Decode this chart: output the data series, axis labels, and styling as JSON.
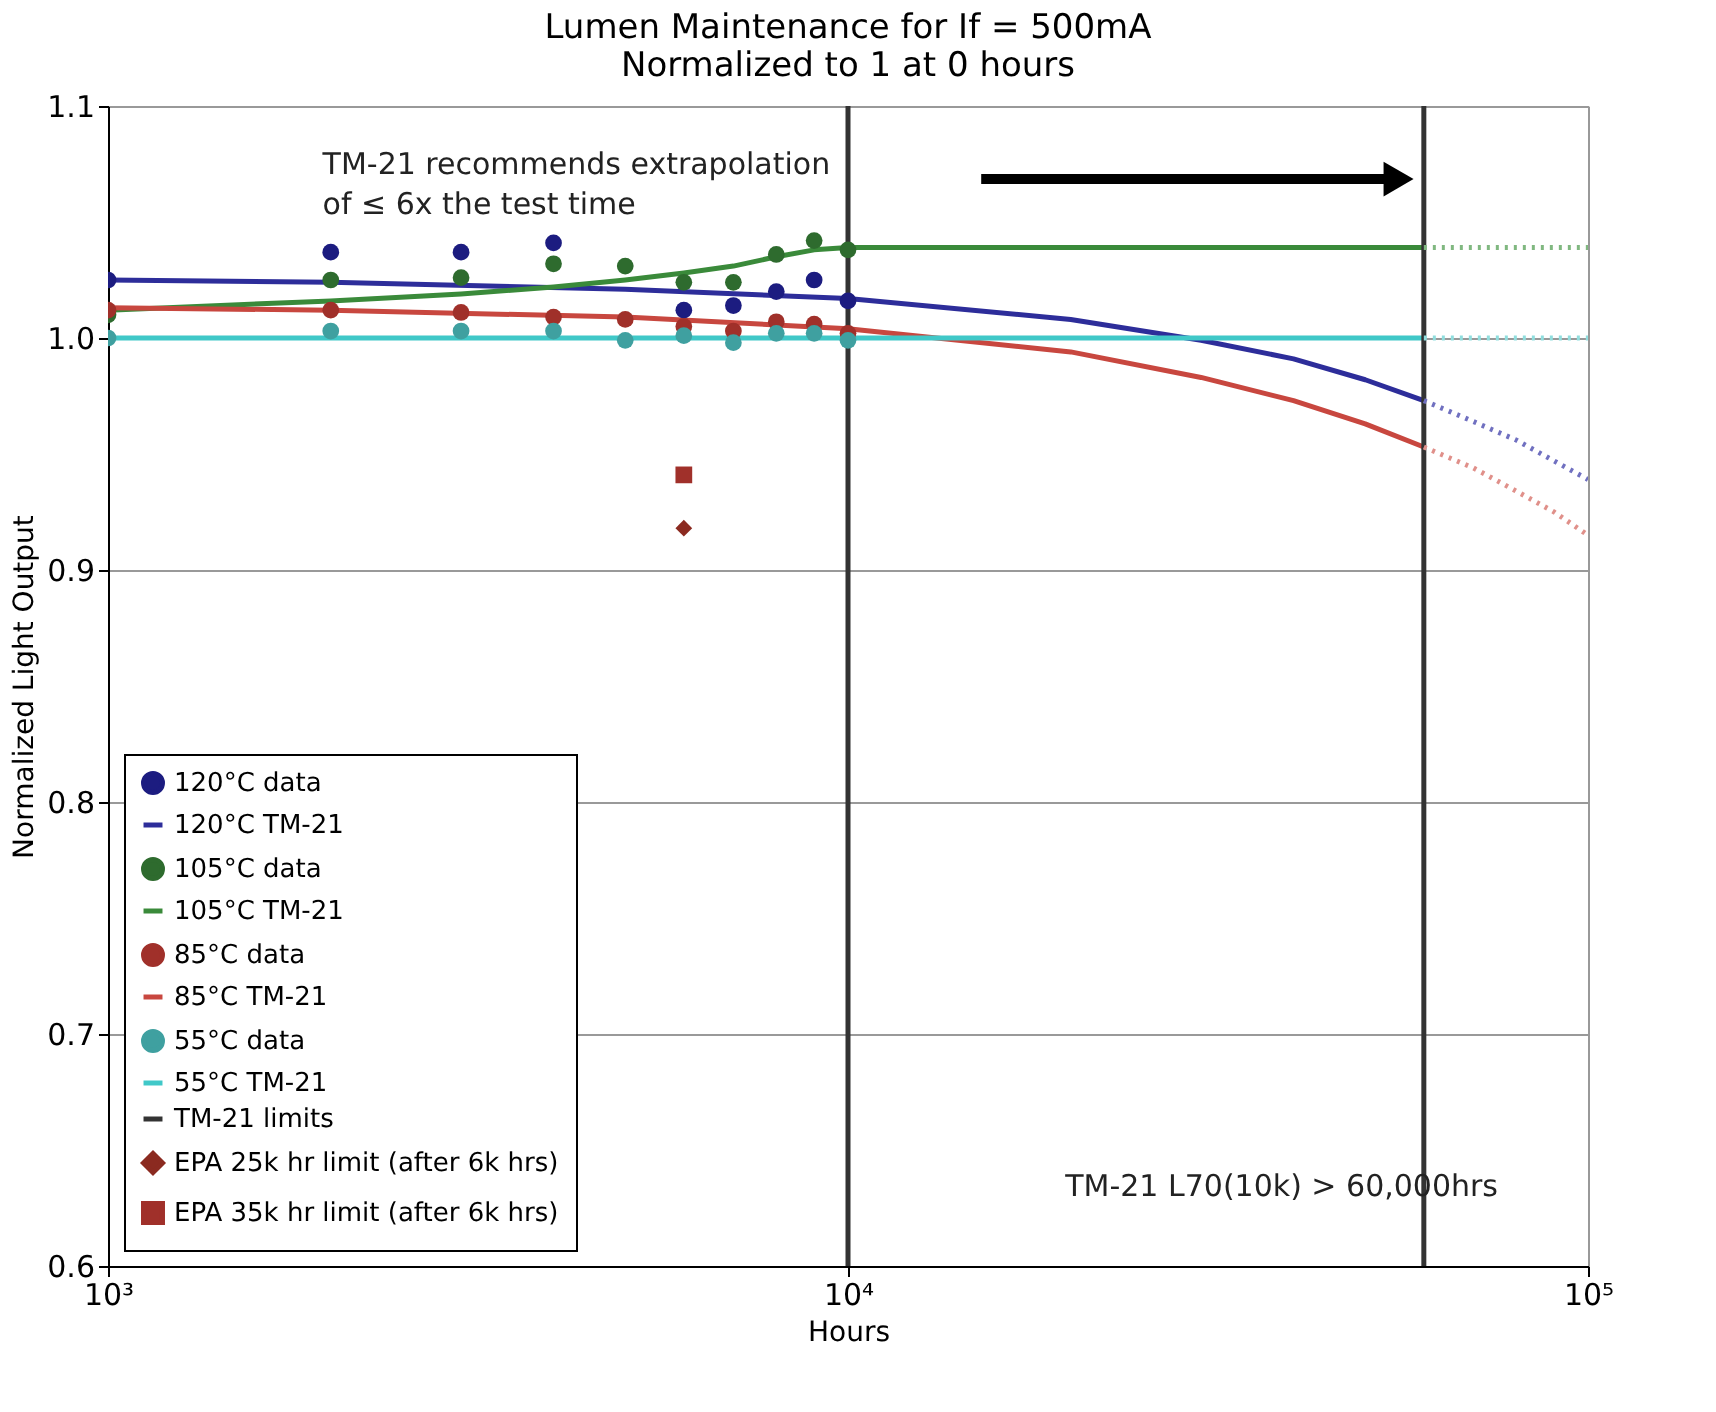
{
  "chart_data": {
    "type": "line",
    "title": "Lumen Maintenance for If = 500mA\nNormalized to 1 at 0 hours",
    "xlabel": "Hours",
    "ylabel": "Normalized Light Output",
    "log": "x",
    "grid": true,
    "legend": "bottom left",
    "xlim": [
      1000,
      100000
    ],
    "xticks": [
      {
        "value": 1000,
        "label": "10³"
      },
      {
        "value": 10000,
        "label": "10⁴"
      },
      {
        "value": 100000,
        "label": "10⁵"
      }
    ],
    "ylim": [
      0.6,
      1.1
    ],
    "yticks": [
      0.6,
      0.7,
      0.8,
      0.9,
      {
        "value": 1.0,
        "label": "1.0"
      },
      1.1
    ],
    "annotations": [
      "TM-21 recommends extrapolation\nof ≤ 6x the test time",
      "TM-21 L70(10k) > 60,000hrs"
    ],
    "series": [
      {
        "name": "120°C data",
        "type": "scatter",
        "marker": "circle",
        "color": "#1c1c80",
        "x": [
          1000,
          2000,
          3000,
          4000,
          5000,
          6000,
          7000,
          8000,
          9000,
          10000
        ],
        "values": [
          1.025,
          1.037,
          1.037,
          1.041,
          null,
          1.012,
          1.014,
          1.02,
          1.025,
          1.016
        ]
      },
      {
        "name": "120°C TM-21",
        "marker": "none",
        "line_style": "solid",
        "color": "#2d2d9a",
        "x": [
          1000,
          2000,
          5000,
          10000,
          20000,
          30000,
          40000,
          50000,
          60000
        ],
        "values": [
          1.025,
          1.024,
          1.021,
          1.017,
          1.008,
          0.999,
          0.991,
          0.982,
          0.973
        ]
      },
      {
        "name": "105°C data",
        "type": "scatter",
        "marker": "circle",
        "color": "#2e6b2e",
        "x": [
          1000,
          2000,
          3000,
          4000,
          5000,
          6000,
          7000,
          8000,
          9000,
          10000
        ],
        "values": [
          1.01,
          1.025,
          1.026,
          1.032,
          1.031,
          1.024,
          1.024,
          1.036,
          1.042,
          1.038
        ]
      },
      {
        "name": "105°C TM-21",
        "marker": "none",
        "line_style": "solid",
        "color": "#3a8a3a",
        "x": [
          1000,
          2000,
          3000,
          4000,
          5000,
          6000,
          7000,
          8000,
          9000,
          10000,
          60000
        ],
        "values": [
          1.012,
          1.016,
          1.019,
          1.022,
          1.025,
          1.028,
          1.031,
          1.035,
          1.038,
          1.039,
          1.039
        ]
      },
      {
        "name": "85°C data",
        "type": "scatter",
        "marker": "circle",
        "color": "#a0302a",
        "x": [
          1000,
          2000,
          3000,
          4000,
          5000,
          6000,
          7000,
          8000,
          9000,
          10000
        ],
        "values": [
          1.012,
          1.012,
          1.011,
          1.009,
          1.008,
          1.005,
          1.003,
          1.007,
          1.006,
          1.002
        ]
      },
      {
        "name": "85°C TM-21",
        "marker": "none",
        "line_style": "solid",
        "color": "#c8473f",
        "x": [
          1000,
          2000,
          5000,
          10000,
          20000,
          30000,
          40000,
          50000,
          60000
        ],
        "values": [
          1.013,
          1.012,
          1.009,
          1.004,
          0.994,
          0.983,
          0.973,
          0.963,
          0.953
        ]
      },
      {
        "name": "55°C data",
        "type": "scatter",
        "marker": "circle",
        "color": "#3fa0a0",
        "x": [
          1000,
          2000,
          3000,
          4000,
          5000,
          6000,
          7000,
          8000,
          9000,
          10000
        ],
        "values": [
          1.0,
          1.003,
          1.003,
          1.003,
          0.999,
          1.001,
          0.998,
          1.002,
          1.002,
          0.999
        ]
      },
      {
        "name": "55°C TM-21",
        "marker": "none",
        "line_style": "solid",
        "color": "#40c8c8",
        "x": [
          1000,
          60000
        ],
        "values": [
          1.0,
          1.0
        ]
      },
      {
        "name": "TM-21 limits",
        "marker": "none",
        "line_style": "solid",
        "color": "#333333",
        "x": [
          10000,
          10000,
          30000,
          60000,
          60000
        ],
        "values": [
          0.6,
          1.1,
          null,
          1.1,
          0.6
        ]
      },
      {
        "name": "EPA 25k hr limit (after 6k hrs)",
        "type": "scatter",
        "marker": "diamond",
        "color": "#8b2a20",
        "x": [
          6000
        ],
        "values": [
          0.918
        ]
      },
      {
        "name": "EPA 35k hr limit (after 6k hrs)",
        "type": "scatter",
        "marker": "square",
        "color": "#a0302a",
        "x": [
          6000
        ],
        "values": [
          0.941
        ]
      },
      {
        "line_style": "dotted",
        "color": "#7070c0",
        "x": [
          60000,
          70000,
          80000,
          90000,
          100000
        ],
        "values": [
          0.973,
          0.964,
          0.956,
          0.947,
          0.939
        ]
      },
      {
        "line_style": "dotted",
        "color": "#80b880",
        "x": [
          60000,
          100000
        ],
        "values": [
          1.039,
          1.039
        ]
      },
      {
        "line_style": "dotted",
        "color": "#e0908a",
        "x": [
          60000,
          70000,
          80000,
          90000,
          100000
        ],
        "values": [
          0.953,
          0.944,
          0.934,
          0.925,
          0.915
        ]
      },
      {
        "line_style": "dotted",
        "color": "#90dede",
        "x": [
          60000,
          100000
        ],
        "values": [
          1.0,
          1.0
        ]
      }
    ]
  }
}
